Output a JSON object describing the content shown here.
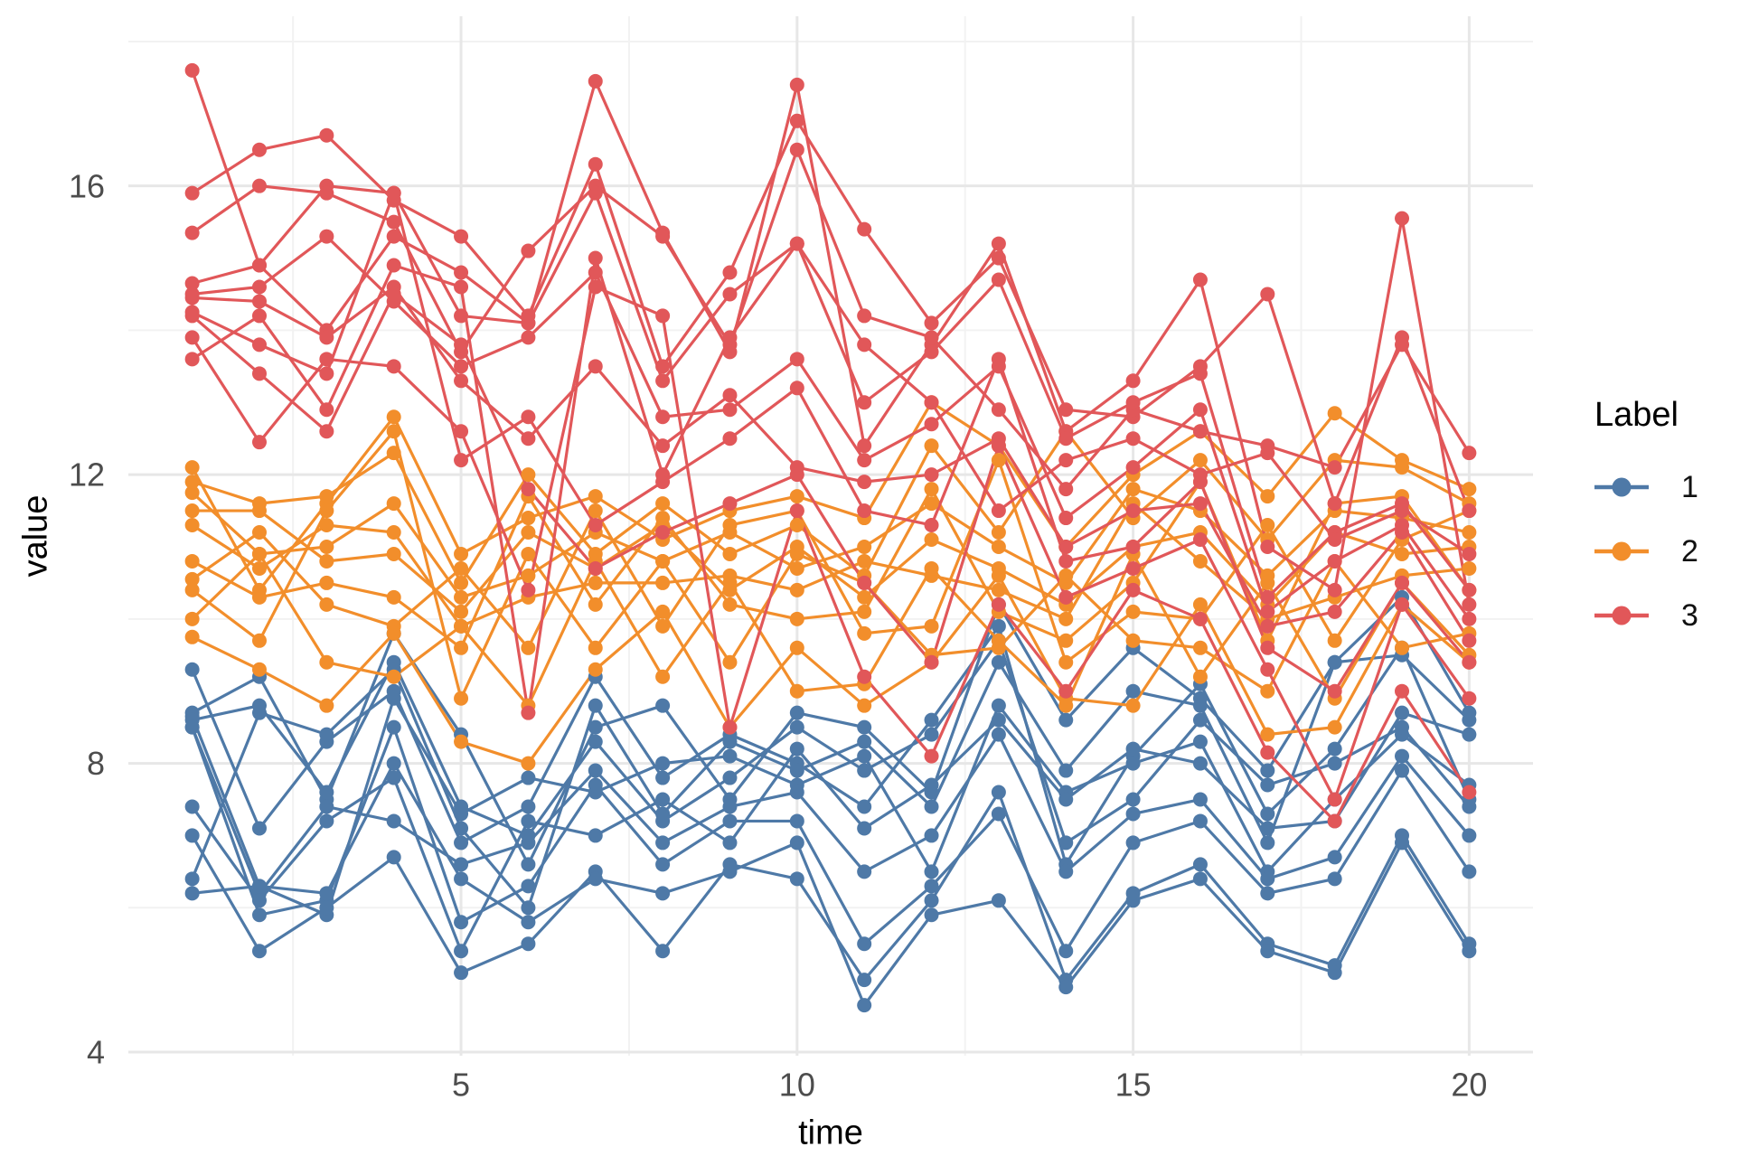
{
  "legend": {
    "title": "Label",
    "items": [
      {
        "label": "1",
        "color": "#4E79A7"
      },
      {
        "label": "2",
        "color": "#F28E2B"
      },
      {
        "label": "3",
        "color": "#E15759"
      }
    ]
  },
  "axes": {
    "x_tick_labels": [
      "5",
      "10",
      "15",
      "20"
    ],
    "y_tick_labels": [
      "4",
      "8",
      "12",
      "16"
    ]
  },
  "style_colors": {
    "grid_major": "#E7E7E7",
    "grid_minor": "#F2F2F2",
    "tick_text": "#4D4D4D",
    "group1": "#4E79A7",
    "group2": "#F28E2B",
    "group3": "#E15759"
  },
  "chart_data": {
    "type": "line",
    "title": "",
    "xlabel": "time",
    "ylabel": "value",
    "legend_title": "Label",
    "legend_position": "right",
    "grid": true,
    "xlim": [
      0.05,
      20.95
    ],
    "ylim": [
      3.95,
      18.35
    ],
    "x_ticks": [
      5,
      10,
      15,
      20
    ],
    "y_ticks": [
      4,
      8,
      12,
      16
    ],
    "x_minor": [
      2.5,
      7.5,
      12.5,
      17.5
    ],
    "y_minor": [
      6,
      10,
      14,
      18
    ],
    "x": [
      1,
      2,
      3,
      4,
      5,
      6,
      7,
      8,
      9,
      10,
      11,
      12,
      13,
      14,
      15,
      16,
      17,
      18,
      19,
      20
    ],
    "groups": [
      {
        "label": "1",
        "color": "#4E79A7",
        "series": [
          [
            9.3,
            7.1,
            8.3,
            9.0,
            6.9,
            7.4,
            9.2,
            7.8,
            8.4,
            8.0,
            7.4,
            8.6,
            9.9,
            6.6,
            8.1,
            9.1,
            7.3,
            8.2,
            9.6,
            7.5
          ],
          [
            8.7,
            9.2,
            7.5,
            9.8,
            8.4,
            6.6,
            8.5,
            8.8,
            7.5,
            8.7,
            8.5,
            7.6,
            10.2,
            8.6,
            9.6,
            8.9,
            7.9,
            9.4,
            10.3,
            8.7
          ],
          [
            8.65,
            6.3,
            5.9,
            8.9,
            7.3,
            7.8,
            7.6,
            8.0,
            8.1,
            7.7,
            8.1,
            6.5,
            8.8,
            7.6,
            8.0,
            8.3,
            6.5,
            7.5,
            8.4,
            7.7
          ],
          [
            8.6,
            8.8,
            7.6,
            9.4,
            7.4,
            7.0,
            8.3,
            7.2,
            7.8,
            8.5,
            7.9,
            8.4,
            9.7,
            6.9,
            7.5,
            8.6,
            7.7,
            8.0,
            8.5,
            7.4
          ],
          [
            8.5,
            6.2,
            7.4,
            7.2,
            6.6,
            6.9,
            7.9,
            6.9,
            7.4,
            7.6,
            6.5,
            7.0,
            8.4,
            6.5,
            7.3,
            7.5,
            6.4,
            6.7,
            8.1,
            7.0
          ],
          [
            8.5,
            5.9,
            6.1,
            8.5,
            5.8,
            6.3,
            7.7,
            6.6,
            7.2,
            7.2,
            5.5,
            6.3,
            7.3,
            5.4,
            6.9,
            7.2,
            6.2,
            6.4,
            7.9,
            6.5
          ],
          [
            7.4,
            6.1,
            7.2,
            7.8,
            5.4,
            7.2,
            7.0,
            7.5,
            6.9,
            8.2,
            7.1,
            7.7,
            8.6,
            7.5,
            8.2,
            8.0,
            7.1,
            7.2,
            8.7,
            8.4
          ],
          [
            7.0,
            5.4,
            6.0,
            6.7,
            5.1,
            5.5,
            6.5,
            5.4,
            6.6,
            6.4,
            5.0,
            6.1,
            7.6,
            5.0,
            6.2,
            6.6,
            5.5,
            5.2,
            7.0,
            5.5
          ],
          [
            6.4,
            8.7,
            8.4,
            9.3,
            7.1,
            6.0,
            8.8,
            7.3,
            8.3,
            7.9,
            8.3,
            7.4,
            9.4,
            7.9,
            9.0,
            8.8,
            6.9,
            9.4,
            9.5,
            8.6
          ],
          [
            6.2,
            6.3,
            6.2,
            8.0,
            6.4,
            5.8,
            6.4,
            6.2,
            6.5,
            6.9,
            4.65,
            5.9,
            6.1,
            4.9,
            6.1,
            6.4,
            5.4,
            5.1,
            6.9,
            5.4
          ]
        ]
      },
      {
        "label": "2",
        "color": "#F28E2B",
        "series": [
          [
            12.1,
            10.4,
            11.6,
            12.8,
            10.9,
            11.4,
            11.7,
            11.1,
            11.5,
            11.7,
            11.4,
            13.0,
            12.4,
            11.0,
            12.0,
            12.6,
            11.7,
            12.85,
            12.2,
            11.8
          ],
          [
            11.9,
            11.6,
            11.7,
            12.3,
            10.5,
            12.0,
            10.9,
            11.6,
            10.9,
            11.3,
            10.6,
            12.4,
            11.2,
            12.6,
            11.4,
            12.2,
            11.1,
            12.2,
            12.1,
            11.6
          ],
          [
            11.75,
            10.9,
            11.0,
            11.6,
            10.3,
            10.6,
            11.2,
            10.8,
            11.2,
            10.7,
            11.0,
            11.6,
            11.0,
            10.5,
            11.8,
            11.5,
            10.6,
            11.5,
            11.4,
            11.2
          ],
          [
            11.5,
            11.5,
            10.8,
            10.9,
            10.1,
            11.2,
            10.7,
            11.3,
            10.4,
            11.0,
            10.3,
            11.1,
            10.7,
            10.2,
            11.0,
            11.2,
            10.2,
            11.2,
            10.9,
            11.0
          ],
          [
            11.3,
            10.7,
            11.3,
            11.2,
            9.9,
            10.3,
            10.5,
            10.5,
            10.6,
            10.4,
            10.8,
            10.6,
            10.4,
            10.0,
            11.6,
            10.8,
            10.0,
            10.3,
            10.6,
            10.7
          ],
          [
            10.8,
            10.3,
            10.5,
            10.3,
            9.6,
            11.7,
            10.2,
            11.4,
            10.2,
            10.0,
            10.1,
            11.8,
            10.1,
            9.7,
            10.5,
            11.9,
            9.7,
            11.6,
            11.7,
            10.4
          ],
          [
            10.55,
            11.2,
            10.2,
            9.9,
            10.7,
            9.6,
            11.5,
            9.9,
            11.3,
            11.5,
            9.8,
            9.9,
            12.2,
            9.4,
            10.1,
            10.0,
            11.3,
            9.7,
            11.1,
            11.5
          ],
          [
            10.4,
            9.7,
            11.5,
            12.6,
            8.9,
            10.9,
            9.6,
            10.8,
            9.4,
            10.9,
            10.5,
            9.5,
            9.6,
            10.6,
            9.7,
            9.6,
            9.0,
            10.8,
            9.6,
            9.8
          ],
          [
            10.0,
            10.9,
            9.4,
            9.2,
            9.9,
            8.8,
            10.8,
            9.2,
            10.5,
            9.0,
            9.1,
            10.7,
            9.7,
            8.8,
            10.9,
            9.2,
            10.5,
            8.9,
            10.5,
            9.5
          ],
          [
            9.75,
            9.3,
            8.8,
            9.8,
            8.3,
            8.0,
            9.3,
            10.1,
            8.5,
            9.6,
            8.8,
            9.4,
            10.6,
            8.9,
            8.8,
            10.2,
            8.4,
            8.5,
            10.2,
            9.4
          ]
        ]
      },
      {
        "label": "3",
        "color": "#E15759",
        "series": [
          [
            17.6,
            14.9,
            16.0,
            15.9,
            14.2,
            14.1,
            17.45,
            15.35,
            13.7,
            17.4,
            12.4,
            13.8,
            15.2,
            12.6,
            13.3,
            14.7,
            11.0,
            10.4,
            15.55,
            10.2
          ],
          [
            15.9,
            16.5,
            16.7,
            15.8,
            15.3,
            14.2,
            16.3,
            13.5,
            14.8,
            16.9,
            15.4,
            14.1,
            15.0,
            12.9,
            12.8,
            13.5,
            14.5,
            11.6,
            13.9,
            11.5
          ],
          [
            15.35,
            16.0,
            15.9,
            15.5,
            13.7,
            15.1,
            16.0,
            15.3,
            13.8,
            16.5,
            14.2,
            13.9,
            12.9,
            11.8,
            12.9,
            12.6,
            12.4,
            12.1,
            13.8,
            12.3
          ],
          [
            14.65,
            14.9,
            14.0,
            15.3,
            14.8,
            14.1,
            15.9,
            13.3,
            14.5,
            15.2,
            13.0,
            13.7,
            14.7,
            12.5,
            13.0,
            13.4,
            10.3,
            11.2,
            11.6,
            10.4
          ],
          [
            14.5,
            14.6,
            15.3,
            14.4,
            13.5,
            13.9,
            14.8,
            12.8,
            12.9,
            13.6,
            12.2,
            12.7,
            13.5,
            11.4,
            12.1,
            12.9,
            10.1,
            10.8,
            11.3,
            10.0
          ],
          [
            14.45,
            14.4,
            13.9,
            14.6,
            13.3,
            12.5,
            13.5,
            12.4,
            13.1,
            12.1,
            11.9,
            12.0,
            12.5,
            11.0,
            11.5,
            11.6,
            9.9,
            10.1,
            11.2,
            9.7
          ],
          [
            14.25,
            13.8,
            13.4,
            15.9,
            12.2,
            12.8,
            11.3,
            11.9,
            12.5,
            13.2,
            11.5,
            11.3,
            13.6,
            10.8,
            11.0,
            11.9,
            9.6,
            9.0,
            10.5,
            9.4
          ],
          [
            14.2,
            13.4,
            12.6,
            14.5,
            13.8,
            11.8,
            10.7,
            11.2,
            11.6,
            12.0,
            10.5,
            9.4,
            12.4,
            10.3,
            10.7,
            11.1,
            9.3,
            7.5,
            10.2,
            8.9
          ],
          [
            13.9,
            12.45,
            13.6,
            13.5,
            12.6,
            10.4,
            14.6,
            14.2,
            8.5,
            11.5,
            9.2,
            8.1,
            10.2,
            9.0,
            10.4,
            10.0,
            8.15,
            7.2,
            9.0,
            7.6
          ],
          [
            13.6,
            14.2,
            12.9,
            14.9,
            14.6,
            8.7,
            15.0,
            12.0,
            13.9,
            15.2,
            13.8,
            13.0,
            11.5,
            12.2,
            12.5,
            12.0,
            12.3,
            11.1,
            11.5,
            10.9
          ]
        ]
      }
    ]
  }
}
